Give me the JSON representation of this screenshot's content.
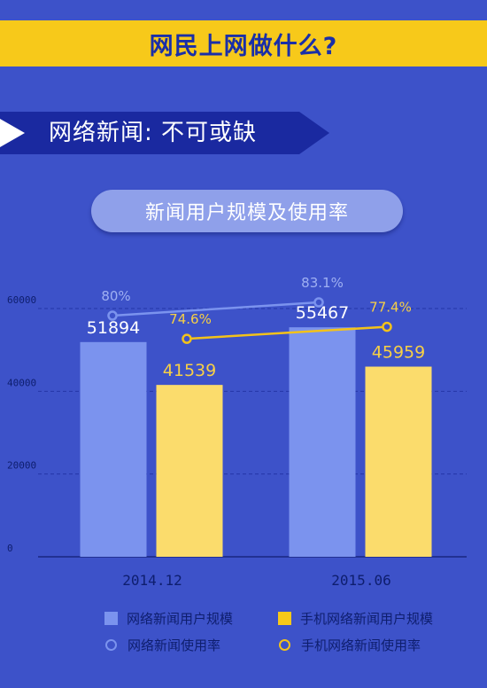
{
  "header": {
    "title": "网民上网做什么?"
  },
  "section": {
    "title": "网络新闻:  不可或缺"
  },
  "colors": {
    "background": "#3d52c9",
    "banner": "#f7c91a",
    "title_text": "#1a2fa8",
    "bar_news": "#7b93ee",
    "bar_mobile": "#fbdc6c",
    "line_news": "#7b93ee",
    "line_mobile": "#f3c21a"
  },
  "chart_data": {
    "type": "bar",
    "title": "新闻用户规模及使用率",
    "categories": [
      "2014.12",
      "2015.06"
    ],
    "y_ticks": [
      "0",
      "20000",
      "40000",
      "60000"
    ],
    "ylim": [
      0,
      60000
    ],
    "grid": true,
    "series": [
      {
        "name": "网络新闻用户规模",
        "type": "bar",
        "values": [
          51894,
          55467
        ],
        "labels": [
          "51894",
          "55467"
        ],
        "color": "#7b93ee"
      },
      {
        "name": "手机网络新闻用户规模",
        "type": "bar",
        "values": [
          41539,
          45959
        ],
        "labels": [
          "41539",
          "45959"
        ],
        "color": "#fbdc6c"
      },
      {
        "name": "网络新闻使用率",
        "type": "line",
        "values": [
          80,
          83.1
        ],
        "labels": [
          "80%",
          "83.1%"
        ],
        "color": "#7b93ee"
      },
      {
        "name": "手机网络新闻使用率",
        "type": "line",
        "values": [
          74.6,
          77.4
        ],
        "labels": [
          "74.6%",
          "77.4%"
        ],
        "color": "#f3c21a"
      }
    ],
    "legend_position": "bottom"
  }
}
